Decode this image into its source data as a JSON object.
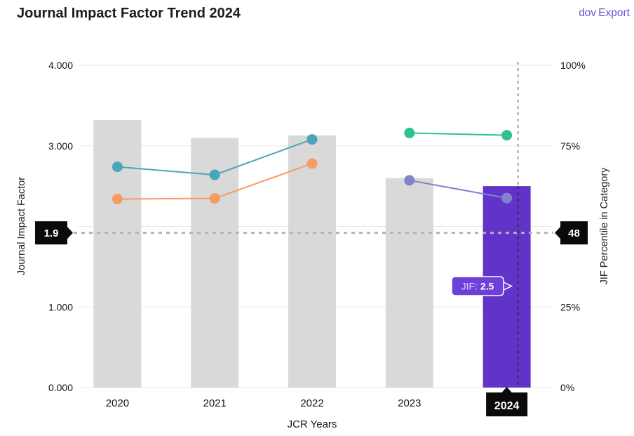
{
  "header": {
    "title": "Journal Impact Factor Trend 2024",
    "export": {
      "icon_text": "dov",
      "label": "Export"
    }
  },
  "colors": {
    "bar_default": "#d9d9d9",
    "bar_highlight": "#6233c8",
    "teal": "#4aa5bc",
    "orange": "#f89b63",
    "green": "#2fc38b",
    "slate": "#8084cb",
    "grid": "#e7e7e7",
    "dash_gray": "#b3b3b3",
    "dash_dark": "#3a3450",
    "badge_bg": "#0a0a0a",
    "badge_text": "#ffffff",
    "tooltip_bg": "#6d40d8",
    "tooltip_prefix_text": "#dcd2f8",
    "export_text": "#6651d6",
    "axis_text": "#141414"
  },
  "chart_data": {
    "type": "bar+line dual-axis",
    "categories": [
      "2020",
      "2021",
      "2022",
      "2023",
      "2024"
    ],
    "bars": {
      "name": "Journal Impact Factor (JIF)",
      "axis": "left",
      "values": [
        3.32,
        3.1,
        3.13,
        2.6,
        2.5
      ],
      "highlight_index": 4
    },
    "series": [
      {
        "name": "percentile-trend-teal",
        "axis": "right",
        "color_key": "teal",
        "points": [
          {
            "x": "2020",
            "y": 68.5
          },
          {
            "x": "2021",
            "y": 66.0
          },
          {
            "x": "2022",
            "y": 77.0
          }
        ]
      },
      {
        "name": "percentile-trend-orange",
        "axis": "right",
        "color_key": "orange",
        "points": [
          {
            "x": "2020",
            "y": 58.5
          },
          {
            "x": "2021",
            "y": 58.7
          },
          {
            "x": "2022",
            "y": 69.5
          }
        ]
      },
      {
        "name": "percentile-trend-green",
        "axis": "right",
        "color_key": "green",
        "points": [
          {
            "x": "2023",
            "y": 79.0
          },
          {
            "x": "2024",
            "y": 78.3
          }
        ]
      },
      {
        "name": "percentile-trend-slate",
        "axis": "right",
        "color_key": "slate",
        "points": [
          {
            "x": "2023",
            "y": 64.3
          },
          {
            "x": "2024",
            "y": 58.8
          }
        ]
      }
    ],
    "left_axis": {
      "title": "Journal Impact Factor",
      "range": [
        0,
        4
      ],
      "tick_labels": [
        "4.000",
        "3.000",
        "1.000",
        "0.000"
      ],
      "tick_values": [
        4,
        3,
        1,
        0
      ],
      "gridline_values": [
        0,
        1,
        2,
        3,
        4
      ]
    },
    "right_axis": {
      "title": "JIF Percentile in Category",
      "range": [
        0,
        100
      ],
      "tick_labels": [
        "100%",
        "75%",
        "25%",
        "0%"
      ],
      "tick_values": [
        100,
        75,
        25,
        0
      ]
    },
    "x_axis": {
      "title": "JCR Years"
    },
    "threshold": {
      "left_label": "1.9",
      "right_label": "48",
      "percentile": 48
    },
    "highlight": {
      "year": "2024",
      "crosshair_x_offset": 16,
      "tooltip": {
        "prefix": "JIF: ",
        "value": "2.5"
      }
    }
  }
}
